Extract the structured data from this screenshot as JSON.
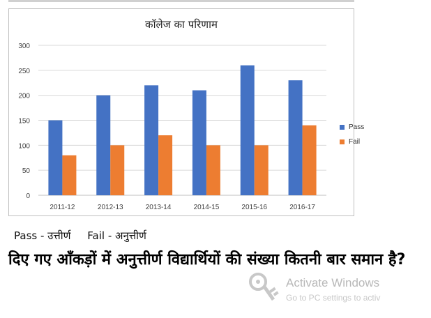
{
  "chart_data": {
    "type": "bar",
    "title": "कॉलेज का परिणाम",
    "categories": [
      "2011-12",
      "2012-13",
      "2013-14",
      "2014-15",
      "2015-16",
      "2016-17"
    ],
    "series": [
      {
        "name": "Pass",
        "values": [
          150,
          200,
          220,
          210,
          260,
          230
        ],
        "color": "#4472C4"
      },
      {
        "name": "Fail",
        "values": [
          80,
          100,
          120,
          100,
          100,
          140
        ],
        "color": "#ED7D31"
      }
    ],
    "ylim": [
      0,
      300
    ],
    "yticks": [
      "0",
      "50",
      "100",
      "150",
      "200",
      "250",
      "300"
    ],
    "grid": true,
    "legend": "right"
  },
  "key_note": "Pass - उत्तीर्ण     Fail - अनुत्तीर्ण",
  "question": "दिए गए आँकड़ों में अनुत्तीर्ण विद्यार्थियों की संख्या कितनी बार समान है?",
  "watermark": {
    "line1": "Activate Windows",
    "line2": "Go to PC settings to activ",
    "icon": "key-icon"
  }
}
